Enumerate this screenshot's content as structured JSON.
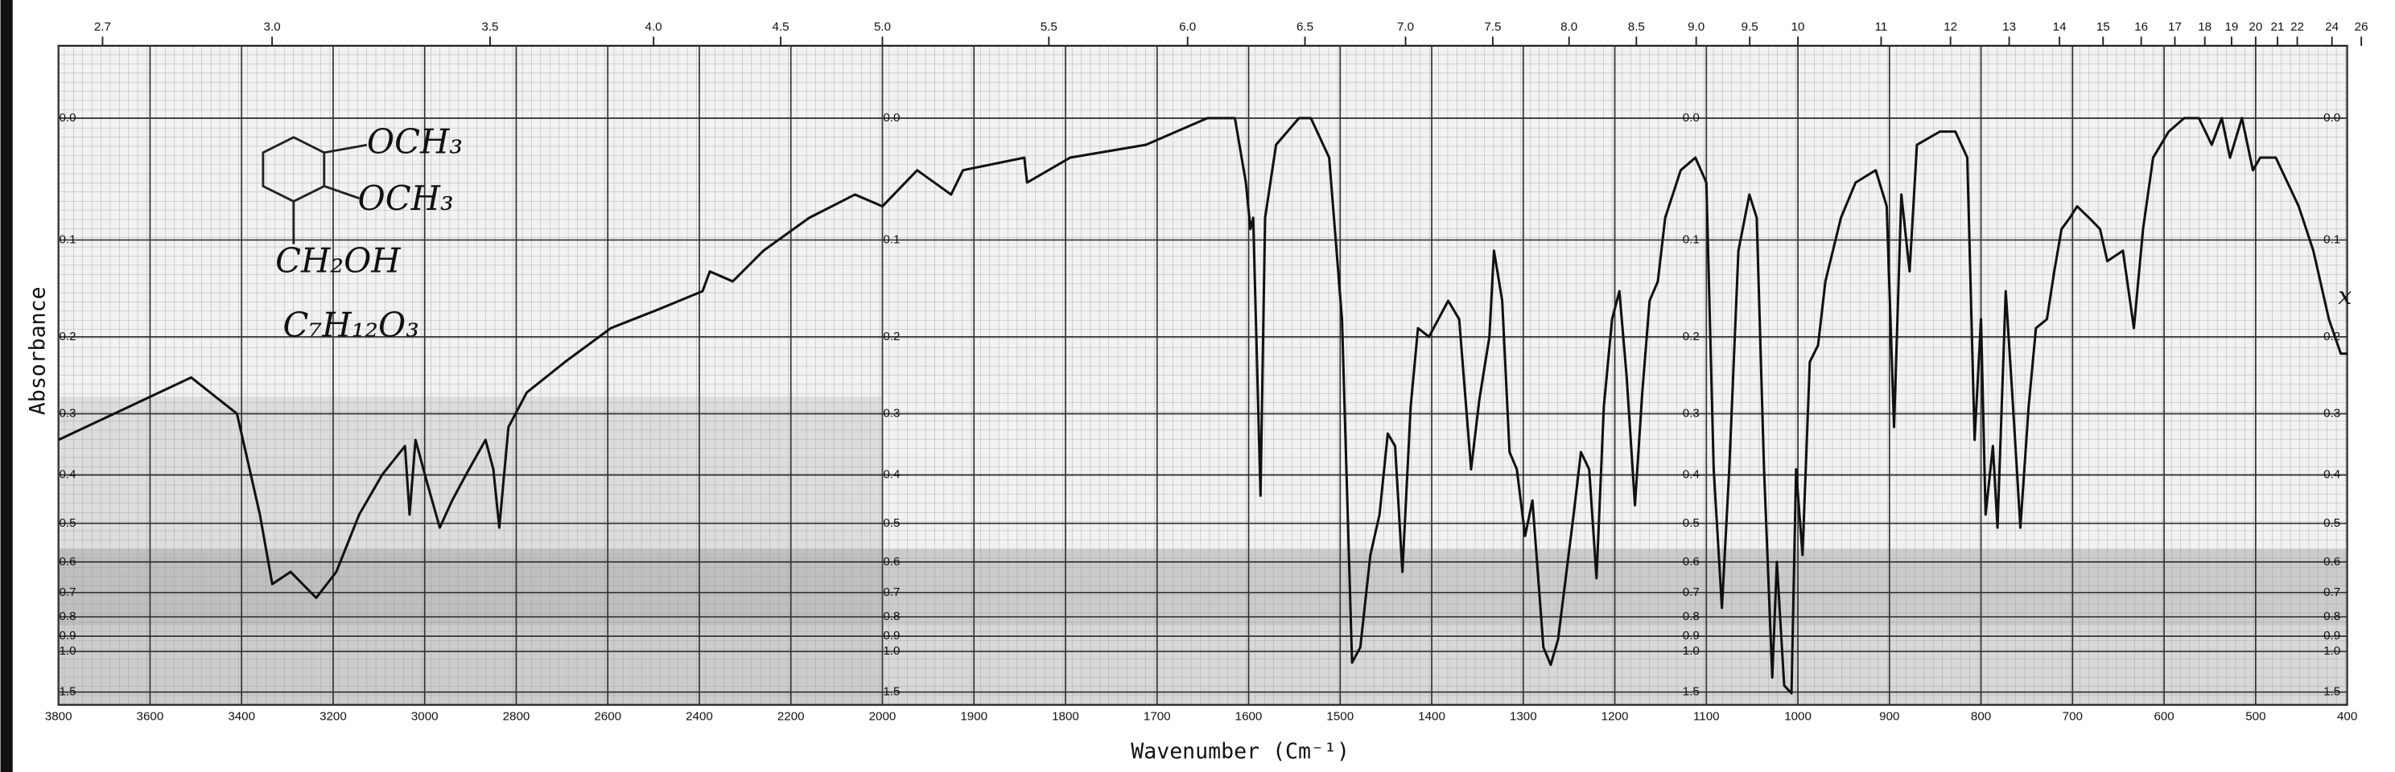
{
  "chart_data": {
    "type": "line",
    "x_label": "Wavenumber (Cm⁻¹)",
    "y_label": "Absorbance",
    "annotations": [
      "OCH₃",
      "OCH₃",
      "CH₂OH",
      "C₇H₁₂O₃",
      "x"
    ],
    "color": "#111111",
    "grid": true,
    "y_scale": "transmittance",
    "x_scale_break": 2000,
    "xlim": [
      3800,
      400
    ],
    "ylim": [
      2,
      -0.05
    ],
    "xticks": [
      3800,
      3600,
      3400,
      3200,
      3000,
      2800,
      2600,
      2400,
      2200,
      2000,
      1900,
      1800,
      1700,
      1600,
      1500,
      1400,
      1300,
      1200,
      1100,
      1000,
      900,
      800,
      700,
      600,
      500,
      400
    ],
    "x2ticks": [
      2.7,
      {
        "value": 3,
        "label": "3.0"
      },
      3.5,
      {
        "value": 4,
        "label": "4.0"
      },
      4.5,
      {
        "value": 5,
        "label": "5.0"
      },
      5.5,
      {
        "value": 6,
        "label": "6.0"
      },
      6.5,
      {
        "value": 7,
        "label": "7.0"
      },
      7.5,
      {
        "value": 8,
        "label": "8.0"
      },
      8.5,
      {
        "value": 9,
        "label": "9.0"
      },
      9.5,
      10,
      11,
      12,
      13,
      14,
      15,
      16,
      17,
      18,
      19,
      20,
      21,
      22,
      24,
      26
    ],
    "yticks": [
      {
        "value": 0,
        "label": "0.0"
      },
      0.1,
      0.2,
      0.3,
      0.4,
      0.5,
      0.6,
      0.7,
      0.8,
      0.9,
      {
        "value": 1,
        "label": "1.0"
      },
      1.5
    ],
    "x": [
      3800,
      3510,
      3410,
      3360,
      3333,
      3293,
      3237,
      3193,
      3143,
      3093,
      3043,
      3033,
      3020,
      2993,
      2967,
      2940,
      2910,
      2867,
      2850,
      2837,
      2817,
      2777,
      2693,
      2593,
      2493,
      2393,
      2377,
      2327,
      2260,
      2160,
      2060,
      2000,
      1962,
      1925,
      1912,
      1845,
      1842,
      1795,
      1712,
      1645,
      1615,
      1603,
      1598,
      1595,
      1587,
      1582,
      1570,
      1545,
      1532,
      1512,
      1498,
      1487,
      1478,
      1467,
      1457,
      1448,
      1440,
      1432,
      1423,
      1415,
      1403,
      1382,
      1370,
      1357,
      1348,
      1337,
      1332,
      1323,
      1315,
      1307,
      1298,
      1290,
      1278,
      1270,
      1262,
      1245,
      1237,
      1228,
      1220,
      1212,
      1203,
      1195,
      1187,
      1178,
      1170,
      1162,
      1153,
      1145,
      1128,
      1112,
      1100,
      1092,
      1083,
      1075,
      1065,
      1053,
      1045,
      1037,
      1028,
      1023,
      1015,
      1007,
      1002,
      995,
      987,
      978,
      970,
      953,
      937,
      915,
      903,
      895,
      887,
      878,
      870,
      845,
      828,
      815,
      807,
      800,
      795,
      787,
      782,
      773,
      765,
      757,
      748,
      740,
      728,
      720,
      712,
      703,
      695,
      682,
      670,
      662,
      645,
      633,
      623,
      612,
      595,
      578,
      562,
      548,
      537,
      528,
      515,
      503,
      495,
      478,
      453,
      437,
      420,
      407,
      400
    ],
    "values": [
      0.34,
      0.25,
      0.3,
      0.48,
      0.67,
      0.63,
      0.72,
      0.63,
      0.48,
      0.4,
      0.35,
      0.48,
      0.34,
      0.42,
      0.51,
      0.45,
      0.4,
      0.34,
      0.39,
      0.51,
      0.32,
      0.27,
      0.23,
      0.19,
      0.17,
      0.15,
      0.13,
      0.14,
      0.11,
      0.08,
      0.06,
      0.07,
      0.04,
      0.06,
      0.04,
      0.03,
      0.05,
      0.03,
      0.02,
      0.0,
      0.0,
      0.05,
      0.09,
      0.08,
      0.44,
      0.08,
      0.02,
      0.0,
      0.0,
      0.03,
      0.18,
      1.09,
      0.97,
      0.58,
      0.48,
      0.33,
      0.35,
      0.63,
      0.29,
      0.19,
      0.2,
      0.16,
      0.18,
      0.39,
      0.28,
      0.2,
      0.11,
      0.16,
      0.36,
      0.39,
      0.53,
      0.45,
      0.97,
      1.11,
      0.92,
      0.48,
      0.36,
      0.39,
      0.65,
      0.29,
      0.18,
      0.15,
      0.25,
      0.46,
      0.27,
      0.16,
      0.14,
      0.08,
      0.04,
      0.03,
      0.05,
      0.39,
      0.76,
      0.39,
      0.11,
      0.06,
      0.08,
      0.39,
      1.25,
      0.6,
      1.37,
      1.53,
      0.39,
      0.58,
      0.23,
      0.21,
      0.14,
      0.08,
      0.05,
      0.04,
      0.07,
      0.32,
      0.06,
      0.13,
      0.02,
      0.01,
      0.01,
      0.03,
      0.34,
      0.18,
      0.48,
      0.35,
      0.51,
      0.15,
      0.29,
      0.51,
      0.29,
      0.19,
      0.18,
      0.13,
      0.09,
      0.08,
      0.07,
      0.08,
      0.09,
      0.12,
      0.11,
      0.19,
      0.09,
      0.03,
      0.01,
      0.0,
      0.0,
      0.02,
      0.0,
      0.03,
      0.0,
      0.04,
      0.03,
      0.03,
      0.07,
      0.11,
      0.18,
      0.22,
      0.22
    ]
  }
}
